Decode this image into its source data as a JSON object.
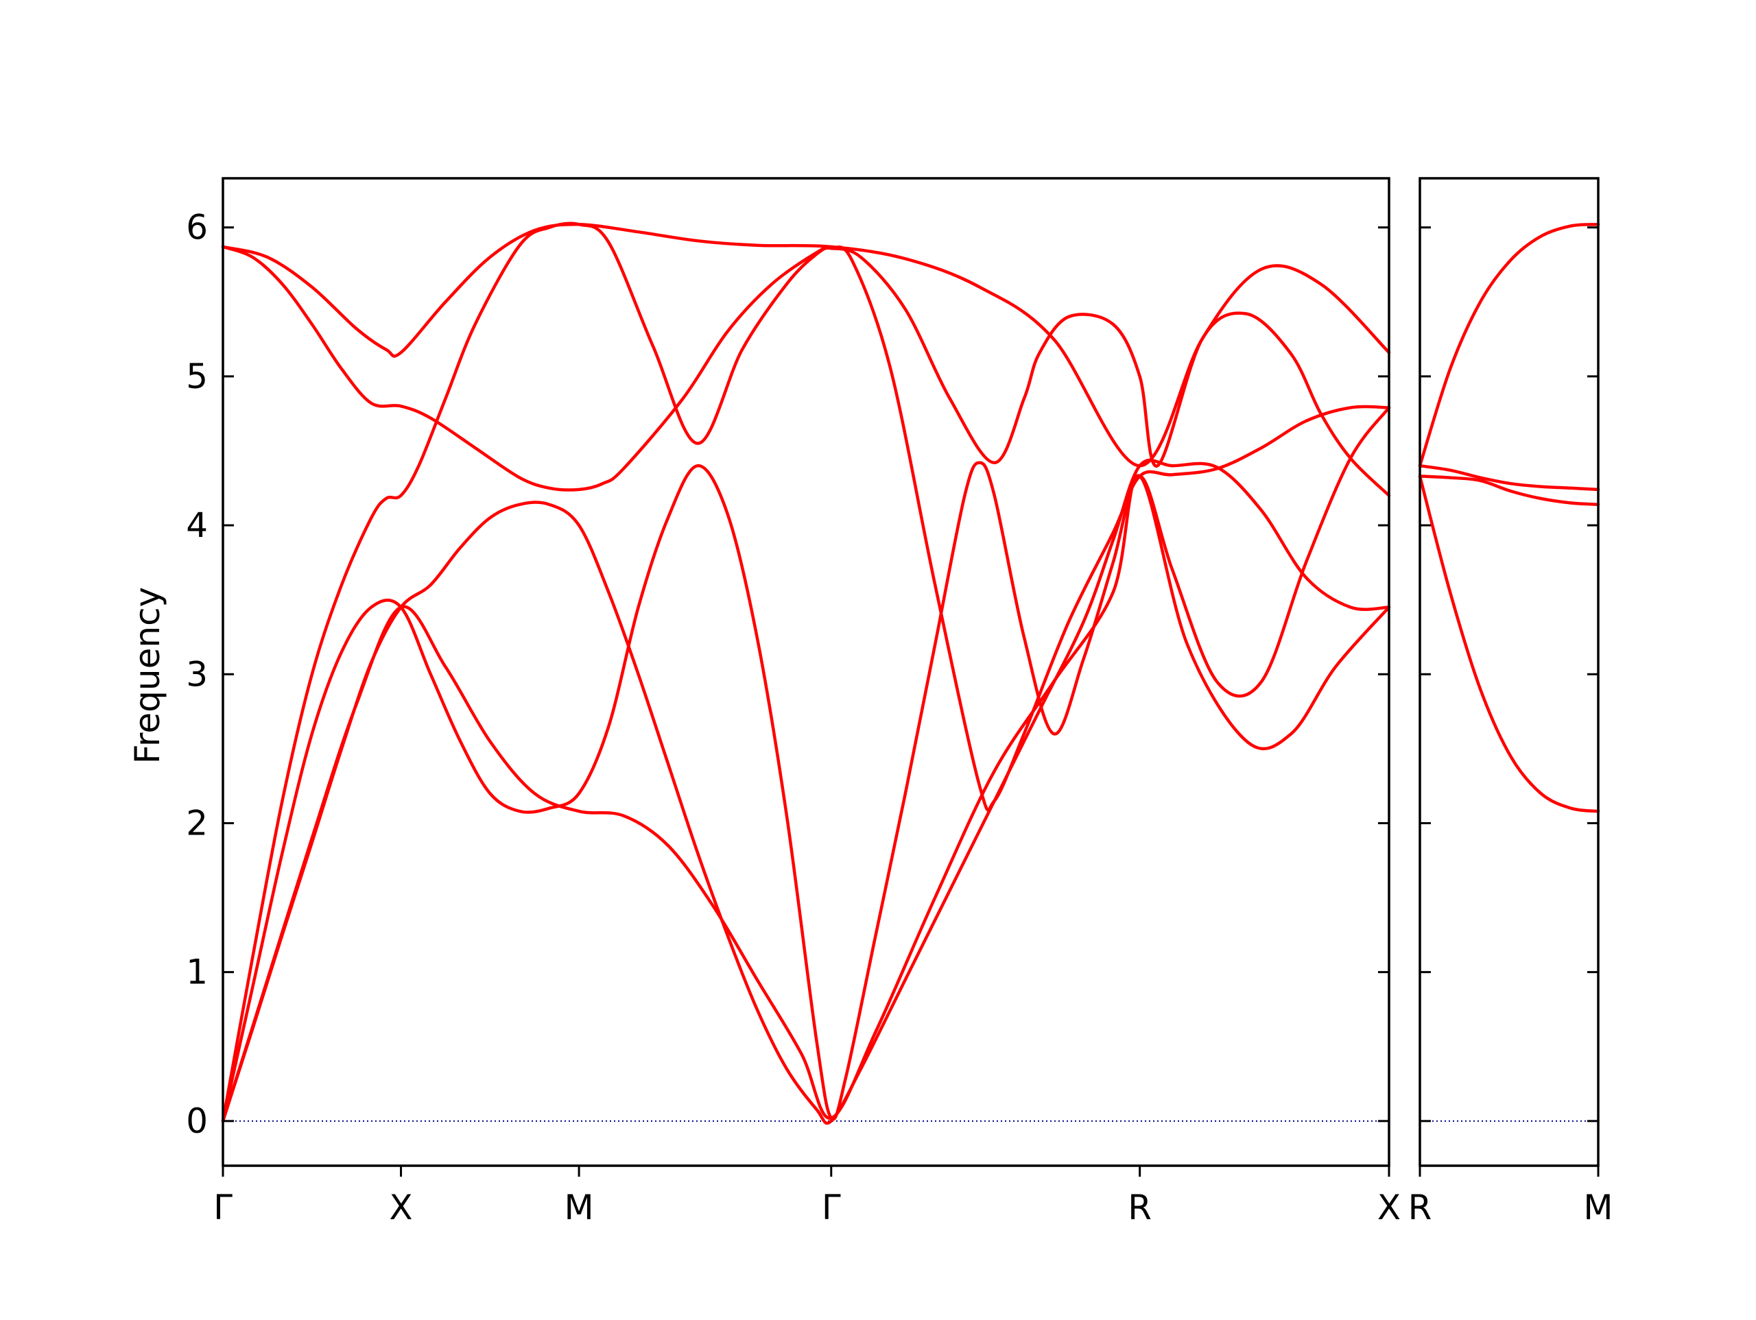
{
  "chart_data": {
    "type": "line",
    "title": "",
    "ylabel": "Frequency",
    "ylim": [
      -0.3,
      6.33
    ],
    "yticks": [
      0,
      1,
      2,
      3,
      4,
      5,
      6
    ],
    "grid": false,
    "legend": "none",
    "colors": {
      "bands": "#ff0000",
      "zero_line": "#00008b",
      "axes": "#000000"
    },
    "panels": [
      {
        "id": "main",
        "xlim": [
          0,
          3.93
        ],
        "ticks": [
          {
            "x": 0.0,
            "label": "Γ"
          },
          {
            "x": 0.6,
            "label": "X"
          },
          {
            "x": 1.2,
            "label": "M"
          },
          {
            "x": 2.05,
            "label": "Γ"
          },
          {
            "x": 3.09,
            "label": "R"
          },
          {
            "x": 3.93,
            "label": "X"
          }
        ],
        "series": [
          {
            "x": [
              0,
              0.15,
              0.3,
              0.45,
              0.55,
              0.6,
              0.75,
              0.9,
              1.05,
              1.2,
              1.4,
              1.6,
              1.8,
              2.05,
              2.3,
              2.55,
              2.8,
              3.09,
              3.3,
              3.5,
              3.7,
              3.93
            ],
            "y": [
              5.87,
              5.8,
              5.6,
              5.32,
              5.18,
              5.16,
              5.5,
              5.8,
              5.98,
              6.02,
              5.97,
              5.91,
              5.88,
              5.87,
              5.79,
              5.6,
              5.25,
              4.4,
              5.25,
              5.72,
              5.62,
              5.16
            ]
          },
          {
            "x": [
              0,
              0.1,
              0.2,
              0.3,
              0.4,
              0.5,
              0.6,
              0.7,
              0.85,
              1.0,
              1.1,
              1.2,
              1.28,
              1.35,
              1.55,
              1.7,
              1.85,
              2.0,
              2.05,
              2.15,
              2.3,
              2.45,
              2.6,
              2.7,
              2.75,
              2.85,
              3.0,
              3.09,
              3.15,
              3.3,
              3.45,
              3.6,
              3.7,
              3.8,
              3.93
            ],
            "y": [
              5.87,
              5.8,
              5.62,
              5.35,
              5.05,
              4.82,
              4.8,
              4.72,
              4.52,
              4.32,
              4.25,
              4.24,
              4.28,
              4.38,
              4.85,
              5.3,
              5.62,
              5.83,
              5.86,
              5.8,
              5.45,
              4.85,
              4.42,
              4.85,
              5.15,
              5.4,
              5.35,
              5.0,
              4.4,
              5.25,
              5.42,
              5.15,
              4.75,
              4.45,
              4.2
            ]
          },
          {
            "x": [
              0,
              0.1,
              0.2,
              0.3,
              0.4,
              0.5,
              0.55,
              0.6,
              0.66,
              0.75,
              0.85,
              1.0,
              1.1,
              1.2,
              1.3,
              1.45,
              1.6,
              1.75,
              1.9,
              2.0,
              2.05,
              2.12,
              2.25,
              2.4,
              2.55,
              2.6,
              2.7,
              2.85,
              3.0,
              3.09,
              3.2,
              3.35,
              3.5,
              3.65,
              3.8,
              3.93
            ],
            "y": [
              0,
              1.1,
              2.15,
              3.0,
              3.6,
              4.05,
              4.18,
              4.2,
              4.4,
              4.85,
              5.35,
              5.88,
              6.0,
              6.02,
              5.9,
              5.2,
              4.55,
              5.18,
              5.62,
              5.82,
              5.86,
              5.78,
              5.05,
              3.6,
              2.25,
              2.15,
              2.6,
              3.35,
              3.95,
              4.33,
              4.34,
              4.38,
              4.52,
              4.7,
              4.79,
              4.79
            ]
          },
          {
            "x": [
              0,
              0.1,
              0.2,
              0.3,
              0.4,
              0.5,
              0.6,
              0.7,
              0.8,
              0.9,
              1.0,
              1.1,
              1.2,
              1.3,
              1.4,
              1.5,
              1.6,
              1.7,
              1.8,
              1.9,
              2.0,
              2.05,
              2.1,
              2.2,
              2.3,
              2.4,
              2.5,
              2.55,
              2.6,
              2.7,
              2.8,
              2.9,
              3.0,
              3.09,
              3.2,
              3.35,
              3.5,
              3.65,
              3.8,
              3.93
            ],
            "y": [
              0,
              0.9,
              1.8,
              2.6,
              3.15,
              3.45,
              3.45,
              3.0,
              2.55,
              2.2,
              2.08,
              2.1,
              2.2,
              2.65,
              3.45,
              4.05,
              4.4,
              4.08,
              3.25,
              2.05,
              0.55,
              0.02,
              0.3,
              1.25,
              2.2,
              3.2,
              4.2,
              4.42,
              4.2,
              3.25,
              2.6,
              3.1,
              3.75,
              4.33,
              3.7,
              2.95,
              2.95,
              3.75,
              4.45,
              4.79
            ]
          },
          {
            "x": [
              0,
              0.1,
              0.2,
              0.3,
              0.4,
              0.5,
              0.6,
              0.7,
              0.8,
              0.9,
              1.0,
              1.1,
              1.2,
              1.3,
              1.4,
              1.5,
              1.6,
              1.7,
              1.8,
              1.9,
              2.0,
              2.05,
              2.15,
              2.3,
              2.45,
              2.6,
              2.75,
              2.9,
              3.0,
              3.09,
              3.2,
              3.35,
              3.5,
              3.65,
              3.8,
              3.93
            ],
            "y": [
              0,
              0.62,
              1.25,
              1.87,
              2.5,
              3.08,
              3.45,
              3.6,
              3.85,
              4.05,
              4.14,
              4.14,
              4.0,
              3.55,
              3.0,
              2.4,
              1.8,
              1.25,
              0.75,
              0.35,
              0.08,
              0.0,
              0.35,
              0.95,
              1.55,
              2.15,
              2.75,
              3.35,
              3.9,
              4.4,
              4.4,
              4.39,
              4.1,
              3.65,
              3.45,
              3.45
            ]
          },
          {
            "x": [
              0,
              0.15,
              0.3,
              0.45,
              0.6,
              0.75,
              0.9,
              1.05,
              1.2,
              1.35,
              1.5,
              1.65,
              1.8,
              1.95,
              2.05,
              2.2,
              2.4,
              2.6,
              2.8,
              3.0,
              3.09,
              3.25,
              3.45,
              3.6,
              3.75,
              3.93
            ],
            "y": [
              0,
              0.95,
              1.9,
              2.8,
              3.45,
              3.05,
              2.55,
              2.2,
              2.08,
              2.05,
              1.85,
              1.45,
              0.95,
              0.45,
              0.02,
              0.6,
              1.5,
              2.35,
              2.95,
              3.55,
              4.33,
              3.2,
              2.55,
              2.6,
              3.05,
              3.45
            ]
          }
        ]
      },
      {
        "id": "right",
        "xlim": [
          0,
          0.59
        ],
        "ticks": [
          {
            "x": 0.0,
            "label": "R"
          },
          {
            "x": 0.59,
            "label": "M"
          }
        ],
        "series": [
          {
            "x": [
              0,
              0.1,
              0.2,
              0.3,
              0.4,
              0.5,
              0.59
            ],
            "y": [
              4.4,
              5.05,
              5.5,
              5.78,
              5.94,
              6.01,
              6.02
            ]
          },
          {
            "x": [
              0,
              0.1,
              0.2,
              0.3,
              0.4,
              0.5,
              0.59
            ],
            "y": [
              4.4,
              4.37,
              4.32,
              4.28,
              4.26,
              4.25,
              4.24
            ]
          },
          {
            "x": [
              0,
              0.1,
              0.2,
              0.3,
              0.4,
              0.5,
              0.59
            ],
            "y": [
              4.33,
              4.32,
              4.3,
              4.23,
              4.18,
              4.15,
              4.14
            ]
          },
          {
            "x": [
              0,
              0.1,
              0.2,
              0.3,
              0.4,
              0.5,
              0.59
            ],
            "y": [
              4.33,
              3.55,
              2.9,
              2.45,
              2.2,
              2.1,
              2.08
            ]
          }
        ]
      }
    ]
  }
}
